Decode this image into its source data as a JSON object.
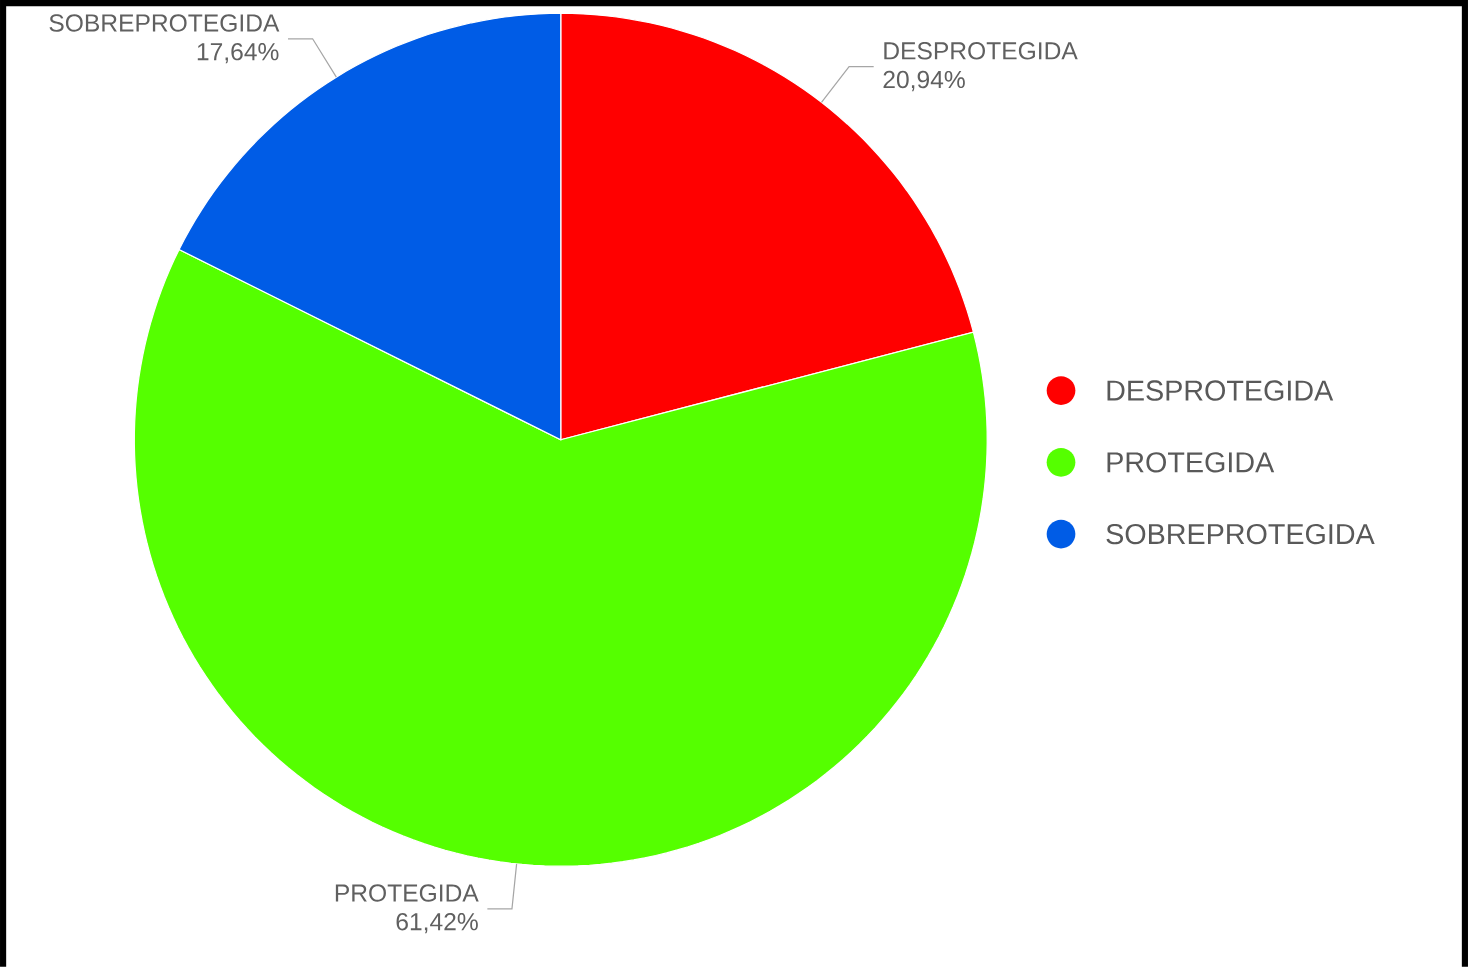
{
  "chart_data": {
    "type": "pie",
    "categories": [
      "DESPROTEGIDA",
      "PROTEGIDA",
      "SOBREPROTEGIDA"
    ],
    "values": [
      20.94,
      61.42,
      17.64
    ],
    "value_labels": [
      "20,94%",
      "61,42%",
      "17,64%"
    ],
    "colors": [
      "#ff0000",
      "#55ff00",
      "#005ce6"
    ],
    "legend": "right"
  }
}
